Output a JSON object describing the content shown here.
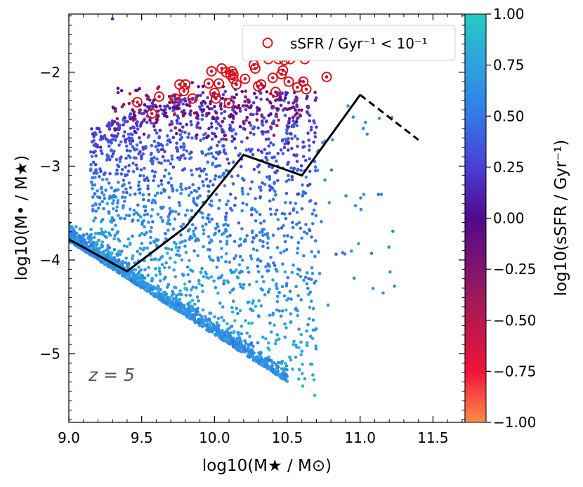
{
  "chart_data": {
    "type": "scatter",
    "title": "",
    "xlabel": "log10(M★ / M⊙)",
    "ylabel": "log10(M• / M★)",
    "xlim": [
      9.0,
      11.72
    ],
    "ylim": [
      -5.73,
      -1.38
    ],
    "xticks": [
      9.0,
      9.5,
      10.0,
      10.5,
      11.0,
      11.5
    ],
    "xtick_labels": [
      "9.0",
      "9.5",
      "10.0",
      "10.5",
      "11.0",
      "11.5"
    ],
    "yticks": [
      -2,
      -3,
      -4,
      -5
    ],
    "ytick_labels": [
      "−2",
      "−3",
      "−4",
      "−5"
    ],
    "annotation": "z = 5",
    "colorbar": {
      "label": "log10(sSFR / Gyr⁻¹)",
      "range": [
        -1.0,
        1.0
      ],
      "ticks": [
        1.0,
        0.75,
        0.5,
        0.25,
        0.0,
        -0.25,
        -0.5,
        -0.75,
        -1.0
      ],
      "tick_labels": [
        "1.00",
        "0.75",
        "0.50",
        "0.25",
        "0.00",
        "−0.25",
        "−0.50",
        "−0.75",
        "−1.00"
      ],
      "colormap": [
        "#ff8c48",
        "#f0133a",
        "#7d136b",
        "#4f0a8c",
        "#4b3ed6",
        "#2f9fe0",
        "#24cbc2"
      ]
    },
    "legend": {
      "label": "sSFR / Gyr⁻¹ < 10⁻¹",
      "marker": "open red circle",
      "position": "top-right",
      "color": "#e31010"
    },
    "series": [
      {
        "name": "median relation (solid)",
        "style": "solid",
        "color": "#000000",
        "x": [
          9.0,
          9.4,
          9.8,
          10.2,
          10.6,
          11.0
        ],
        "y": [
          -3.78,
          -4.12,
          -3.65,
          -2.88,
          -3.1,
          -2.24
        ]
      },
      {
        "name": "median relation (dashed)",
        "style": "dashed",
        "color": "#000000",
        "x": [
          11.0,
          11.4
        ],
        "y": [
          -2.24,
          -2.72
        ]
      },
      {
        "name": "quenched galaxies (sSFR < 10^-1 Gyr^-1)",
        "style": "open-circle",
        "color": "#e31010",
        "x": [
          9.47,
          9.57,
          9.62,
          9.73,
          9.76,
          9.79,
          9.8,
          9.85,
          9.96,
          9.98,
          10.0,
          10.01,
          10.03,
          10.05,
          10.08,
          10.1,
          10.11,
          10.12,
          10.13,
          10.13,
          10.15,
          10.21,
          10.27,
          10.28,
          10.3,
          10.32,
          10.32,
          10.37,
          10.4,
          10.42,
          10.44,
          10.46,
          10.47,
          10.48,
          10.51,
          10.52,
          10.57,
          10.61,
          10.62,
          10.63,
          10.77
        ],
        "y": [
          -2.32,
          -2.44,
          -2.26,
          -2.28,
          -2.13,
          -2.2,
          -2.13,
          -2.28,
          -2.12,
          -1.99,
          -2.22,
          -2.28,
          -2.12,
          -1.96,
          -2.0,
          -2.33,
          -2.03,
          -1.99,
          -2.02,
          -2.07,
          -2.13,
          -2.07,
          -1.92,
          -1.96,
          -2.15,
          -1.74,
          -2.13,
          -1.86,
          -2.06,
          -2.21,
          -1.86,
          -2.02,
          -1.98,
          -1.87,
          -2.1,
          -1.86,
          -2.16,
          -2.1,
          -1.86,
          -2.18,
          -2.05
        ]
      }
    ],
    "scatter_summary": "About 3000 simulated galaxies colored by log10(sSFR/Gyr^-1); a dense diagonal lower envelope runs from (9.0, -3.8) to (10.5, -5.3); passive (red/purple) points cluster near log10(M•/M★) ≈ -2 at high stellar mass."
  }
}
